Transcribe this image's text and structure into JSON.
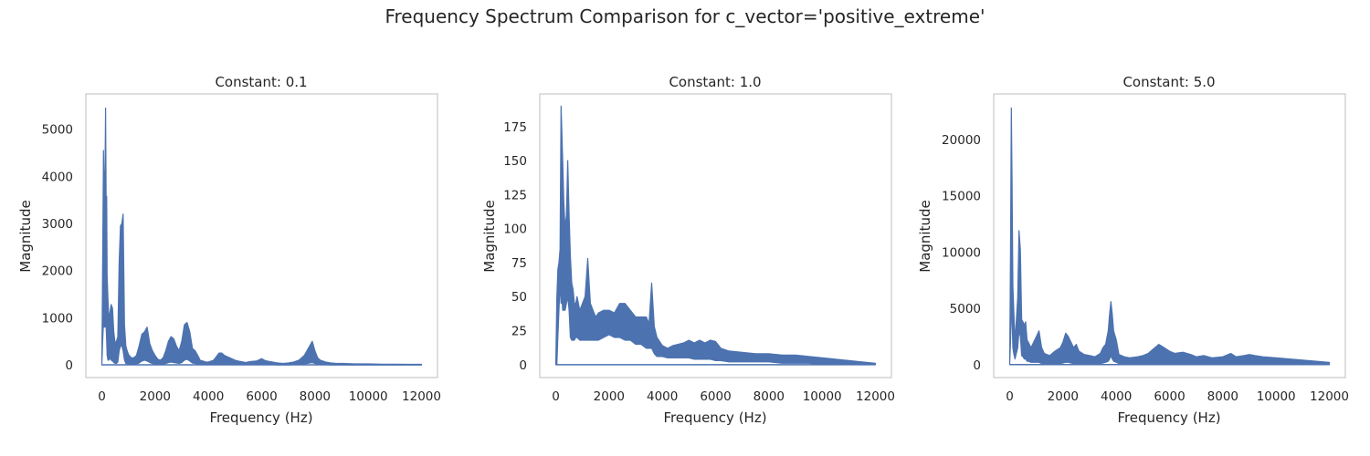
{
  "figure": {
    "suptitle": "Frequency Spectrum Comparison for c_vector='positive_extreme'",
    "series_color": "#4c72b0"
  },
  "chart_data": [
    {
      "type": "line",
      "title": "Constant: 0.1",
      "xlabel": "Frequency (Hz)",
      "ylabel": "Magnitude",
      "xlim": [
        -600,
        12600
      ],
      "ylim": [
        -270,
        5750
      ],
      "xticks": [
        0,
        2000,
        4000,
        6000,
        8000,
        10000,
        12000
      ],
      "yticks": [
        0,
        1000,
        2000,
        3000,
        4000,
        5000
      ],
      "grid": false,
      "envelope": {
        "x": [
          0,
          30,
          60,
          90,
          120,
          140,
          160,
          180,
          200,
          230,
          260,
          300,
          350,
          400,
          450,
          500,
          550,
          600,
          650,
          700,
          750,
          800,
          850,
          900,
          950,
          1000,
          1100,
          1200,
          1300,
          1400,
          1500,
          1600,
          1700,
          1800,
          1900,
          2000,
          2100,
          2200,
          2300,
          2400,
          2500,
          2600,
          2700,
          2800,
          2900,
          3000,
          3100,
          3200,
          3300,
          3400,
          3500,
          3600,
          3700,
          3800,
          3900,
          4000,
          4200,
          4400,
          4500,
          4600,
          4800,
          5000,
          5200,
          5400,
          5600,
          5800,
          6000,
          6100,
          6200,
          6400,
          6600,
          6800,
          7000,
          7200,
          7400,
          7600,
          7700,
          7800,
          7900,
          8000,
          8100,
          8200,
          8400,
          8600,
          8800,
          9000,
          9500,
          10000,
          10500,
          11000,
          11500,
          12000
        ],
        "max": [
          0,
          2200,
          4550,
          3600,
          4150,
          5450,
          3500,
          3580,
          1900,
          1400,
          1000,
          1100,
          1280,
          1200,
          700,
          450,
          500,
          600,
          2200,
          2950,
          3000,
          3200,
          850,
          400,
          300,
          220,
          150,
          150,
          200,
          400,
          650,
          700,
          800,
          450,
          300,
          200,
          120,
          100,
          150,
          300,
          500,
          600,
          550,
          400,
          300,
          500,
          850,
          900,
          700,
          350,
          300,
          200,
          90,
          80,
          60,
          60,
          100,
          250,
          250,
          200,
          150,
          100,
          70,
          50,
          70,
          80,
          130,
          100,
          80,
          60,
          40,
          30,
          40,
          60,
          100,
          200,
          300,
          400,
          500,
          300,
          150,
          100,
          60,
          40,
          30,
          30,
          20,
          20,
          15,
          15,
          10,
          10
        ],
        "min": [
          0,
          500,
          900,
          800,
          800,
          900,
          800,
          500,
          200,
          100,
          100,
          150,
          100,
          80,
          50,
          30,
          30,
          60,
          300,
          400,
          400,
          300,
          100,
          30,
          20,
          10,
          10,
          10,
          20,
          40,
          80,
          100,
          80,
          50,
          30,
          10,
          10,
          10,
          20,
          30,
          50,
          60,
          50,
          40,
          30,
          50,
          100,
          120,
          80,
          40,
          30,
          20,
          10,
          5,
          5,
          5,
          10,
          20,
          20,
          15,
          10,
          5,
          5,
          5,
          5,
          5,
          10,
          5,
          5,
          5,
          0,
          0,
          0,
          5,
          10,
          20,
          30,
          40,
          50,
          30,
          10,
          5,
          5,
          0,
          0,
          0,
          0,
          0,
          0,
          0,
          0,
          0
        ]
      }
    },
    {
      "type": "line",
      "title": "Constant: 1.0",
      "xlabel": "Frequency (Hz)",
      "ylabel": "Magnitude",
      "xlim": [
        -600,
        12600
      ],
      "ylim": [
        -9.5,
        199
      ],
      "xticks": [
        0,
        2000,
        4000,
        6000,
        8000,
        10000,
        12000
      ],
      "yticks": [
        0,
        25,
        50,
        75,
        100,
        125,
        150,
        175
      ],
      "grid": false,
      "envelope": {
        "x": [
          0,
          40,
          80,
          120,
          160,
          200,
          230,
          260,
          300,
          350,
          400,
          450,
          500,
          550,
          600,
          650,
          700,
          750,
          800,
          900,
          1000,
          1100,
          1200,
          1300,
          1400,
          1500,
          1600,
          1800,
          2000,
          2200,
          2400,
          2600,
          2800,
          3000,
          3200,
          3400,
          3500,
          3600,
          3700,
          3800,
          4000,
          4200,
          4400,
          4600,
          4800,
          5000,
          5200,
          5400,
          5600,
          5800,
          6000,
          6200,
          6500,
          7000,
          7500,
          8000,
          8500,
          9000,
          9500,
          10000,
          10500,
          11000,
          11500,
          12000
        ],
        "max": [
          0,
          50,
          70,
          75,
          85,
          190,
          170,
          150,
          120,
          100,
          110,
          150,
          110,
          80,
          60,
          55,
          45,
          45,
          50,
          40,
          45,
          50,
          78,
          45,
          40,
          35,
          38,
          40,
          40,
          38,
          45,
          45,
          40,
          35,
          35,
          35,
          30,
          60,
          28,
          20,
          14,
          12,
          14,
          15,
          16,
          18,
          16,
          18,
          16,
          18,
          17,
          12,
          10,
          9,
          8,
          8,
          7,
          7,
          6,
          5,
          4,
          3,
          2,
          1
        ],
        "min": [
          0,
          0,
          20,
          40,
          60,
          45,
          50,
          40,
          40,
          40,
          45,
          50,
          40,
          20,
          18,
          18,
          18,
          20,
          20,
          18,
          18,
          18,
          18,
          18,
          18,
          18,
          18,
          20,
          22,
          20,
          20,
          18,
          18,
          15,
          15,
          12,
          12,
          12,
          8,
          6,
          6,
          5,
          5,
          5,
          5,
          5,
          4,
          4,
          4,
          4,
          3,
          3,
          2,
          2,
          2,
          2,
          1,
          1,
          1,
          0,
          0,
          0,
          0,
          0
        ]
      }
    },
    {
      "type": "line",
      "title": "Constant: 5.0",
      "xlabel": "Frequency (Hz)",
      "ylabel": "Magnitude",
      "xlim": [
        -600,
        12600
      ],
      "ylim": [
        -1150,
        24050
      ],
      "xticks": [
        0,
        2000,
        4000,
        6000,
        8000,
        10000,
        12000
      ],
      "yticks": [
        0,
        5000,
        10000,
        15000,
        20000
      ],
      "grid": false,
      "envelope": {
        "x": [
          0,
          30,
          60,
          90,
          120,
          150,
          200,
          250,
          300,
          350,
          400,
          450,
          500,
          550,
          600,
          650,
          700,
          800,
          900,
          1000,
          1100,
          1200,
          1300,
          1500,
          1700,
          1900,
          2000,
          2100,
          2200,
          2300,
          2400,
          2500,
          2600,
          2800,
          3000,
          3200,
          3400,
          3500,
          3600,
          3700,
          3750,
          3800,
          3850,
          3900,
          4000,
          4100,
          4300,
          4500,
          4800,
          5000,
          5200,
          5400,
          5600,
          5800,
          6000,
          6200,
          6500,
          6800,
          7000,
          7300,
          7600,
          8000,
          8300,
          8500,
          8800,
          9000,
          9200,
          9500,
          10000,
          10500,
          11000,
          11500,
          12000
        ],
        "max": [
          0,
          10000,
          22800,
          16200,
          7000,
          5000,
          2000,
          4000,
          6000,
          11900,
          10200,
          4000,
          3800,
          3500,
          3800,
          2200,
          2000,
          1500,
          2000,
          2500,
          3000,
          1500,
          1000,
          800,
          1200,
          1500,
          2000,
          2800,
          2500,
          2000,
          1500,
          1800,
          1200,
          900,
          800,
          700,
          1000,
          1500,
          1800,
          3000,
          4500,
          5600,
          4500,
          3000,
          2200,
          900,
          700,
          600,
          700,
          800,
          1000,
          1400,
          1800,
          1500,
          1200,
          1000,
          1100,
          900,
          700,
          800,
          600,
          700,
          1000,
          700,
          800,
          900,
          800,
          700,
          600,
          500,
          400,
          300,
          200
        ],
        "min": [
          0,
          2000,
          5000,
          4000,
          1500,
          1000,
          500,
          1000,
          1500,
          3000,
          2500,
          800,
          700,
          500,
          500,
          300,
          300,
          200,
          200,
          200,
          200,
          100,
          100,
          100,
          100,
          100,
          150,
          200,
          200,
          150,
          100,
          100,
          100,
          80,
          80,
          80,
          100,
          150,
          200,
          300,
          500,
          800,
          500,
          300,
          200,
          100,
          80,
          60,
          60,
          80,
          100,
          100,
          120,
          100,
          100,
          80,
          80,
          60,
          50,
          50,
          40,
          40,
          50,
          40,
          40,
          40,
          40,
          30,
          20,
          10,
          10,
          5,
          0
        ]
      }
    }
  ]
}
